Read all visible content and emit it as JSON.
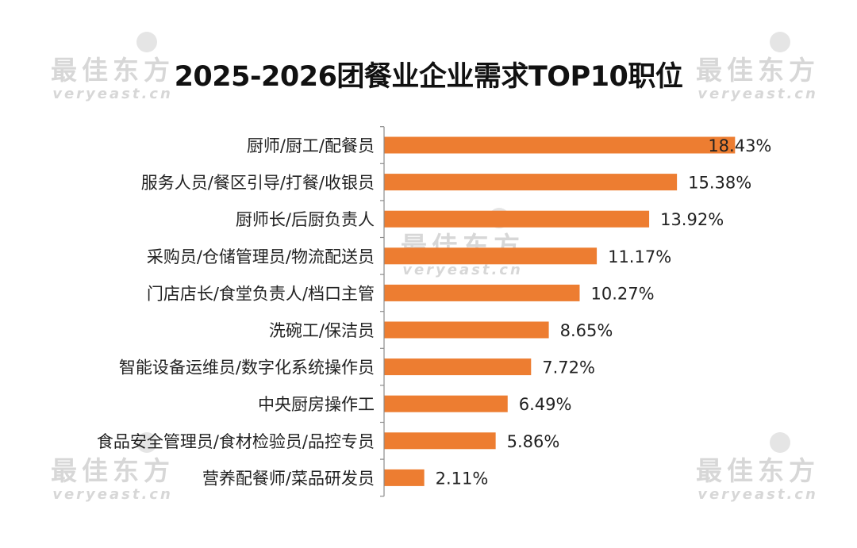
{
  "title": "2025-2026团餐业企业需求TOP10职位",
  "watermark": {
    "brand": "最佳东方",
    "domain": "veryeast.cn"
  },
  "colors": {
    "bar": "#ED7D31",
    "axis": "#8c8c8c",
    "text": "#222222",
    "watermark": "#d3d3d3"
  },
  "chart_data": {
    "type": "bar",
    "orientation": "horizontal",
    "title": "2025-2026团餐业企业需求TOP10职位",
    "xlabel": "",
    "ylabel": "",
    "unit": "%",
    "xlim": [
      0,
      20
    ],
    "grid": false,
    "legend": "none",
    "categories": [
      "厨师/厨工/配餐员",
      "服务人员/餐区引导/打餐/收银员",
      "厨师长/后厨负责人",
      "采购员/仓储管理员/物流配送员",
      "门店店长/食堂负责人/档口主管",
      "洗碗工/保洁员",
      "智能设备运维员/数字化系统操作员",
      "中央厨房操作工",
      "食品安全管理员/食材检验员/品控专员",
      "营养配餐师/菜品研发员"
    ],
    "values": [
      18.43,
      15.38,
      13.92,
      11.17,
      10.27,
      8.65,
      7.72,
      6.49,
      5.86,
      2.11
    ],
    "data_labels": [
      "18.43%",
      "15.38%",
      "13.92%",
      "11.17%",
      "10.27%",
      "8.65%",
      "7.72%",
      "6.49%",
      "5.86%",
      "2.11%"
    ]
  }
}
